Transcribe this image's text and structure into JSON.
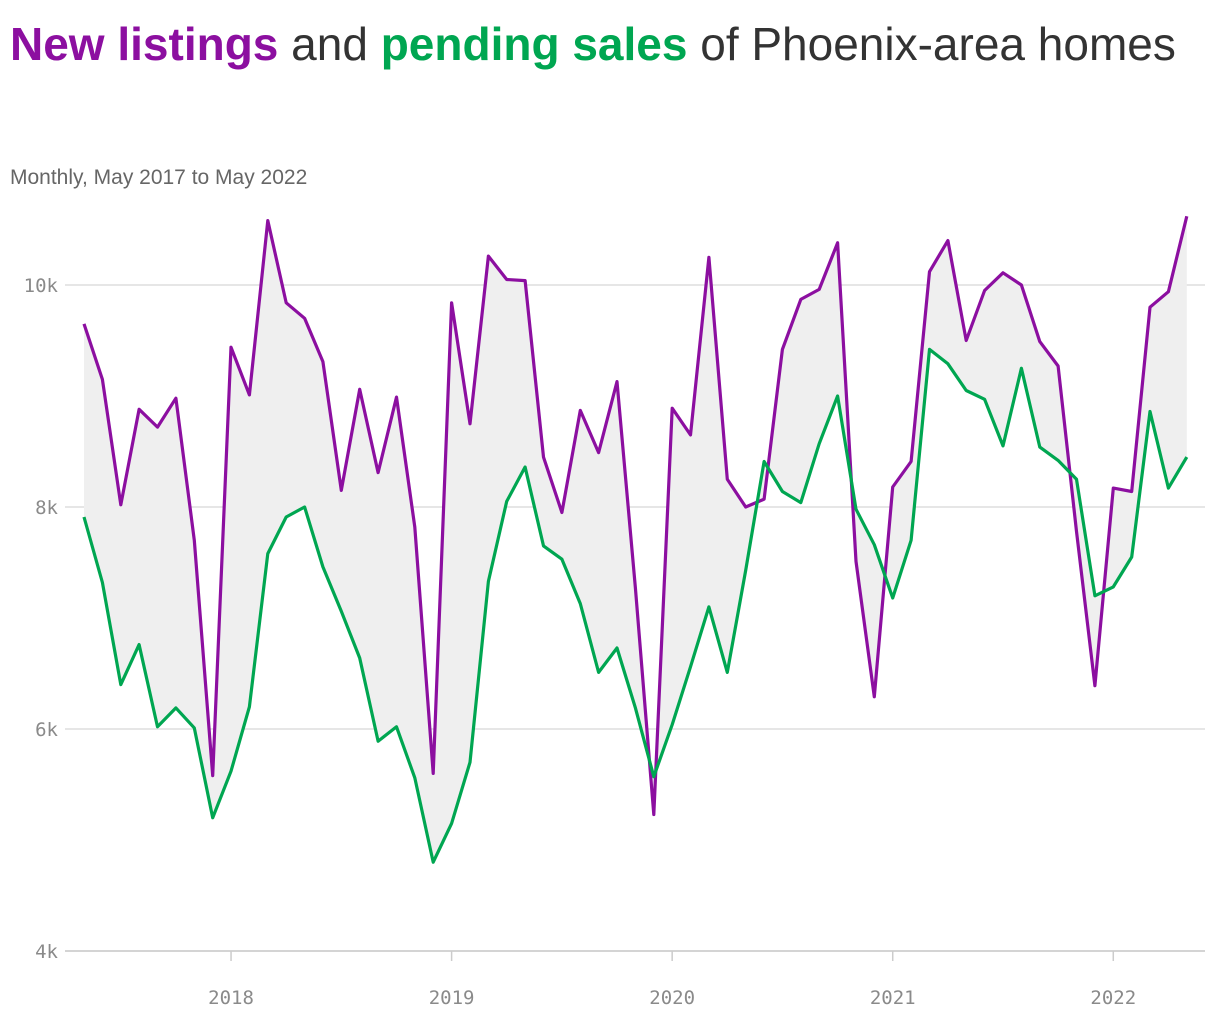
{
  "title": {
    "part1": "New listings",
    "part2": " and ",
    "part3": "pending sales",
    "part4": " of Phoenix-area homes"
  },
  "subtitle": "Monthly, May 2017 to May 2022",
  "colors": {
    "new_listings": "#8c0fa0",
    "pending_sales": "#00a651",
    "band": "#efefef",
    "grid": "#dddddd",
    "title_text": "#333333"
  },
  "chart_data": {
    "type": "line",
    "x_start": "2017-05",
    "x_frequency": "monthly",
    "x_ticks": [
      "2018",
      "2019",
      "2020",
      "2021",
      "2022"
    ],
    "y_ticks": [
      "4k",
      "6k",
      "8k",
      "10k"
    ],
    "ylim": [
      4000,
      10600
    ],
    "grid": true,
    "shaded_between_series": true,
    "series": [
      {
        "name": "New listings",
        "values": [
          9650,
          9150,
          8020,
          8880,
          8720,
          8980,
          7700,
          5580,
          9440,
          9010,
          10580,
          9840,
          9700,
          9310,
          8150,
          9060,
          8310,
          8990,
          7820,
          5600,
          9840,
          8750,
          10260,
          10050,
          10040,
          8450,
          7950,
          8870,
          8490,
          9130,
          7270,
          5230,
          8890,
          8650,
          10250,
          8250,
          8000,
          8070,
          9420,
          9870,
          9960,
          10380,
          7510,
          6290,
          8180,
          8410,
          10120,
          10400,
          9500,
          9950,
          10110,
          10000,
          9490,
          9270,
          7780,
          6390,
          8170,
          8140,
          9800,
          9940,
          10620
        ]
      },
      {
        "name": "Pending sales",
        "values": [
          7910,
          7320,
          6400,
          6760,
          6020,
          6190,
          6010,
          5200,
          5620,
          6200,
          7580,
          7910,
          8000,
          7460,
          7060,
          6640,
          5890,
          6020,
          5560,
          4800,
          5150,
          5700,
          7330,
          8050,
          8360,
          7650,
          7530,
          7130,
          6510,
          6730,
          6190,
          5570,
          6040,
          6560,
          7100,
          6510,
          7430,
          8410,
          8140,
          8040,
          8570,
          9000,
          7980,
          7660,
          7180,
          7700,
          9420,
          9290,
          9050,
          8970,
          8550,
          9250,
          8540,
          8420,
          8250,
          7200,
          7280,
          7550,
          8860,
          8170,
          8450
        ]
      }
    ]
  }
}
